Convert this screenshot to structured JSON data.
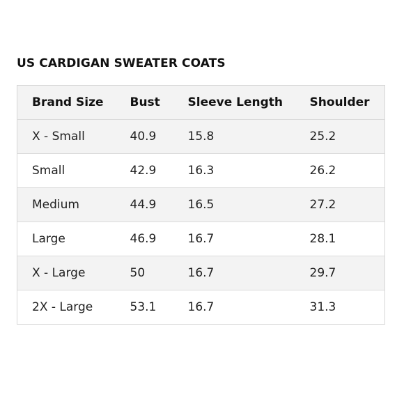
{
  "title": "US CARDIGAN SWEATER COATS",
  "columns": [
    "Brand Size",
    "Bust",
    "Sleeve Length",
    "Shoulder"
  ],
  "rows": [
    [
      "X - Small",
      "40.9",
      "15.8",
      "25.2"
    ],
    [
      "Small",
      "42.9",
      "16.3",
      "26.2"
    ],
    [
      "Medium",
      "44.9",
      "16.5",
      "27.2"
    ],
    [
      "Large",
      "46.9",
      "16.7",
      "28.1"
    ],
    [
      "X - Large",
      "50",
      "16.7",
      "29.7"
    ],
    [
      "2X - Large",
      "53.1",
      "16.7",
      "31.3"
    ]
  ]
}
